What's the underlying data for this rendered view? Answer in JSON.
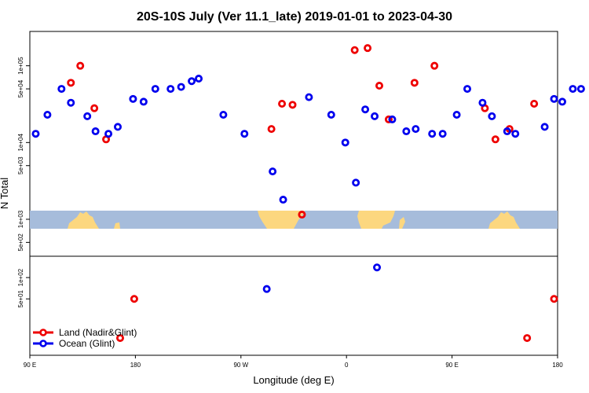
{
  "chart_data": {
    "type": "scatter",
    "title": "20S-10S July (Ver 11.1_late)   2019-01-01 to 2023-04-30",
    "xlabel": "Longitude (deg E)",
    "ylabel": "N Total",
    "y_scale": "log",
    "x_ticks": [
      {
        "value": 90,
        "label": "90 E"
      },
      {
        "value": 180,
        "label": "180"
      },
      {
        "value": 270,
        "label": "90 W"
      },
      {
        "value": 360,
        "label": "0"
      },
      {
        "value": 450,
        "label": "90 E"
      },
      {
        "value": 540,
        "label": "180"
      }
    ],
    "xlim": [
      90,
      540
    ],
    "upper_panel": {
      "ylim": [
        330,
        280000
      ],
      "y_ticks": [
        {
          "value": 500,
          "label": "5e+02"
        },
        {
          "value": 1000,
          "label": "1e+03"
        },
        {
          "value": 5000,
          "label": "5e+03"
        },
        {
          "value": 10000,
          "label": "1e+04"
        },
        {
          "value": 50000,
          "label": "5e+04"
        },
        {
          "value": 100000,
          "label": "1e+05"
        }
      ]
    },
    "lower_panel": {
      "ylim": [
        8,
        200
      ],
      "y_ticks": [
        {
          "value": 50,
          "label": "5e+01"
        },
        {
          "value": 100,
          "label": "1e+02"
        }
      ]
    },
    "legend": {
      "position": "bottom-left",
      "entries": [
        {
          "label": "Land (Nadir&Glint)",
          "color": "#ee0000"
        },
        {
          "label": "Ocean (Glint)",
          "color": "#0000ee"
        }
      ]
    },
    "map_band": {
      "ocean_color": "#a6bcdb",
      "land_color": "#fcd77f"
    },
    "series": [
      {
        "name": "Land (Nadir&Glint)",
        "color": "#ee0000",
        "panel": "upper",
        "x": [
          125,
          133,
          145,
          155,
          296,
          305,
          314,
          322,
          367,
          378,
          388,
          396,
          418,
          435,
          478,
          487,
          499,
          520
        ],
        "y": [
          60000,
          100000,
          28000,
          11000,
          15000,
          32000,
          31000,
          1150,
          160000,
          170000,
          55000,
          20000,
          60000,
          100000,
          28000,
          11000,
          15000,
          32000
        ]
      },
      {
        "name": "Ocean (Glint)",
        "color": "#0000ee",
        "panel": "upper",
        "x": [
          95,
          105,
          117,
          125,
          139,
          146,
          157,
          165,
          178,
          187,
          197,
          210,
          219,
          228,
          234,
          255,
          273,
          297,
          306,
          328,
          347,
          359,
          368,
          376,
          384,
          399,
          411,
          419,
          433,
          442,
          454,
          463,
          476,
          484,
          497,
          504,
          529,
          537,
          544,
          553,
          560
        ],
        "y": [
          13000,
          23000,
          50000,
          33000,
          22000,
          14000,
          13000,
          16000,
          37000,
          34000,
          50000,
          50000,
          53000,
          63000,
          68000,
          23000,
          13000,
          4200,
          1800,
          39000,
          23000,
          10000,
          3000,
          27000,
          22000,
          20000,
          14000,
          15000,
          13000,
          13000,
          23000,
          50000,
          33000,
          22000,
          14000,
          13000,
          16000,
          37000,
          34000,
          50000,
          50000
        ]
      },
      {
        "name": "Land (Nadir&Glint)",
        "color": "#ee0000",
        "panel": "lower",
        "x": [
          167,
          179,
          514,
          537
        ],
        "y": [
          14,
          50,
          14,
          50
        ]
      },
      {
        "name": "Ocean (Glint)",
        "color": "#0000ee",
        "panel": "lower",
        "x": [
          292,
          386
        ],
        "y": [
          69,
          139
        ]
      }
    ]
  }
}
